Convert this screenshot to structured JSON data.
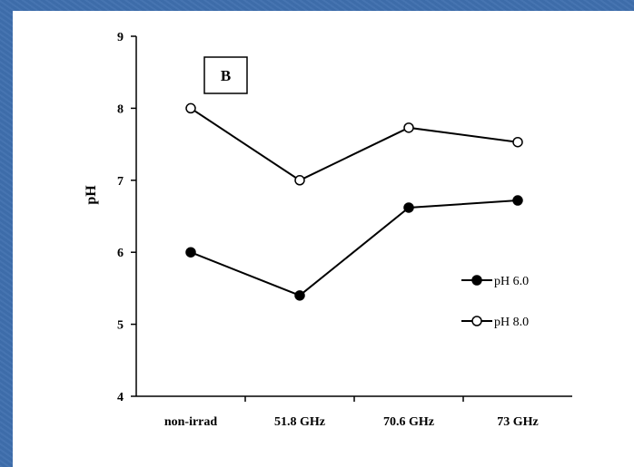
{
  "chart_data": {
    "type": "line",
    "annotation": "B",
    "xlabel": "",
    "ylabel": "pH",
    "categories": [
      "non-irrad",
      "51.8 GHz",
      "70.6 GHz",
      "73 GHz"
    ],
    "ylim": [
      4,
      9
    ],
    "yticks": [
      "4",
      "5",
      "6",
      "7",
      "8",
      "9"
    ],
    "grid": false,
    "legend_position": "right",
    "series": [
      {
        "name": "pH 6.0",
        "marker": "filled-circle",
        "values": [
          6.0,
          5.4,
          6.62,
          6.72
        ]
      },
      {
        "name": "pH 8.0",
        "marker": "open-circle",
        "values": [
          8.0,
          7.0,
          7.73,
          7.53
        ]
      }
    ]
  }
}
